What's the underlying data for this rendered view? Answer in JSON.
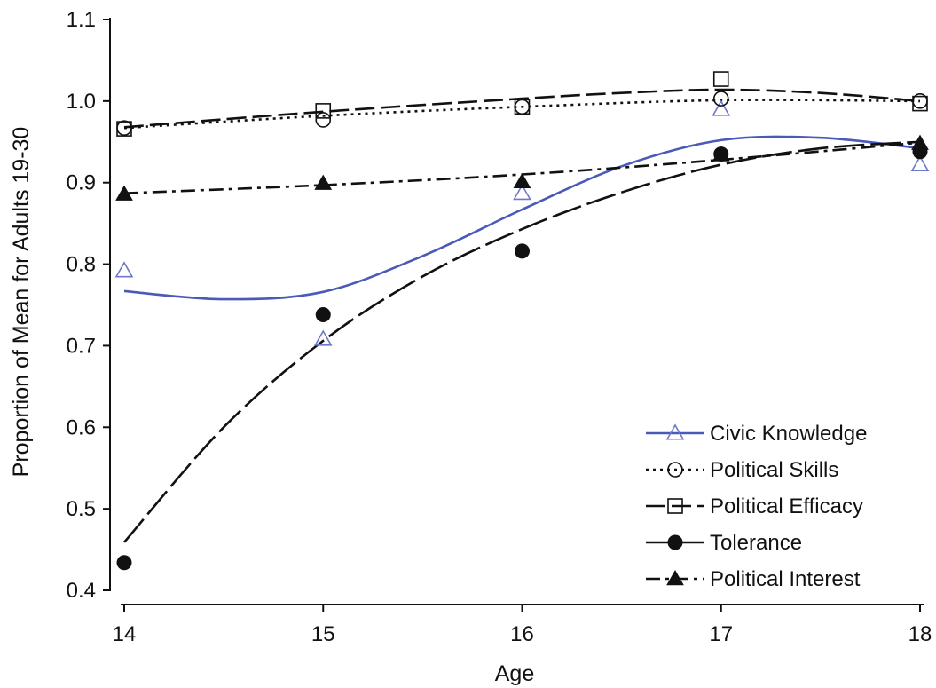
{
  "chart_data": {
    "type": "scatter",
    "title": "",
    "xlabel": "Age",
    "ylabel": "Proportion of Mean for Adults 19-30",
    "xlim": [
      14,
      18
    ],
    "ylim": [
      0.4,
      1.1
    ],
    "x_ticks": [
      14,
      15,
      16,
      17,
      18
    ],
    "y_ticks": [
      0.4,
      0.5,
      0.6,
      0.7,
      0.8,
      0.9,
      1.0,
      1.1
    ],
    "x_tick_labels": [
      "14",
      "15",
      "16",
      "17",
      "18"
    ],
    "y_tick_labels": [
      "0.4",
      "0.5",
      "0.6",
      "0.7",
      "0.8",
      "0.9",
      "1.0",
      "1.1"
    ],
    "grid": false,
    "legend_position": "bottom-right",
    "series": [
      {
        "name": "Civic Knowledge",
        "marker": "open-triangle",
        "line_style": "solid",
        "color": "#4a5ab8",
        "marker_color": "#6f79c9",
        "points": [
          [
            14,
            0.792
          ],
          [
            15,
            0.708
          ],
          [
            16,
            0.887
          ],
          [
            17,
            0.99
          ],
          [
            18,
            0.922
          ]
        ],
        "fit": [
          [
            14,
            0.767
          ],
          [
            14.5,
            0.757
          ],
          [
            15,
            0.766
          ],
          [
            15.5,
            0.81
          ],
          [
            16,
            0.867
          ],
          [
            16.5,
            0.92
          ],
          [
            17,
            0.952
          ],
          [
            17.5,
            0.955
          ],
          [
            18,
            0.942
          ]
        ]
      },
      {
        "name": "Political Skills",
        "marker": "open-circle",
        "line_style": "dotted",
        "color": "#111111",
        "points": [
          [
            14,
            0.967
          ],
          [
            15,
            0.977
          ],
          [
            16,
            0.993
          ],
          [
            17,
            1.003
          ],
          [
            18,
            1.0
          ]
        ],
        "fit": [
          [
            14,
            0.967
          ],
          [
            15,
            0.982
          ],
          [
            16,
            0.993
          ],
          [
            17,
            1.001
          ],
          [
            18,
            1.0
          ]
        ]
      },
      {
        "name": "Political Efficacy",
        "marker": "open-square",
        "line_style": "long-dash",
        "color": "#111111",
        "points": [
          [
            14,
            0.966
          ],
          [
            15,
            0.988
          ],
          [
            16,
            0.993
          ],
          [
            17,
            1.027
          ],
          [
            18,
            0.997
          ]
        ],
        "fit": [
          [
            14,
            0.968
          ],
          [
            15,
            0.987
          ],
          [
            16,
            1.003
          ],
          [
            16.5,
            1.01
          ],
          [
            17,
            1.014
          ],
          [
            17.5,
            1.01
          ],
          [
            18,
            1.0
          ]
        ]
      },
      {
        "name": "Tolerance",
        "marker": "filled-circle",
        "line_style": "long-dash-gap",
        "color": "#111111",
        "points": [
          [
            14,
            0.434
          ],
          [
            15,
            0.738
          ],
          [
            16,
            0.816
          ],
          [
            17,
            0.935
          ],
          [
            18,
            0.938
          ]
        ],
        "fit": [
          [
            14,
            0.459
          ],
          [
            14.5,
            0.6
          ],
          [
            15,
            0.706
          ],
          [
            15.5,
            0.785
          ],
          [
            16,
            0.843
          ],
          [
            16.5,
            0.888
          ],
          [
            17,
            0.922
          ],
          [
            17.5,
            0.942
          ],
          [
            18,
            0.95
          ]
        ]
      },
      {
        "name": "Political Interest",
        "marker": "filled-triangle",
        "line_style": "dash-dot",
        "color": "#111111",
        "points": [
          [
            14,
            0.886
          ],
          [
            15,
            0.899
          ],
          [
            16,
            0.901
          ],
          [
            17,
            0.934
          ],
          [
            18,
            0.948
          ]
        ],
        "fit": [
          [
            14,
            0.887
          ],
          [
            15,
            0.897
          ],
          [
            16,
            0.91
          ],
          [
            17,
            0.928
          ],
          [
            18,
            0.949
          ]
        ]
      }
    ]
  }
}
